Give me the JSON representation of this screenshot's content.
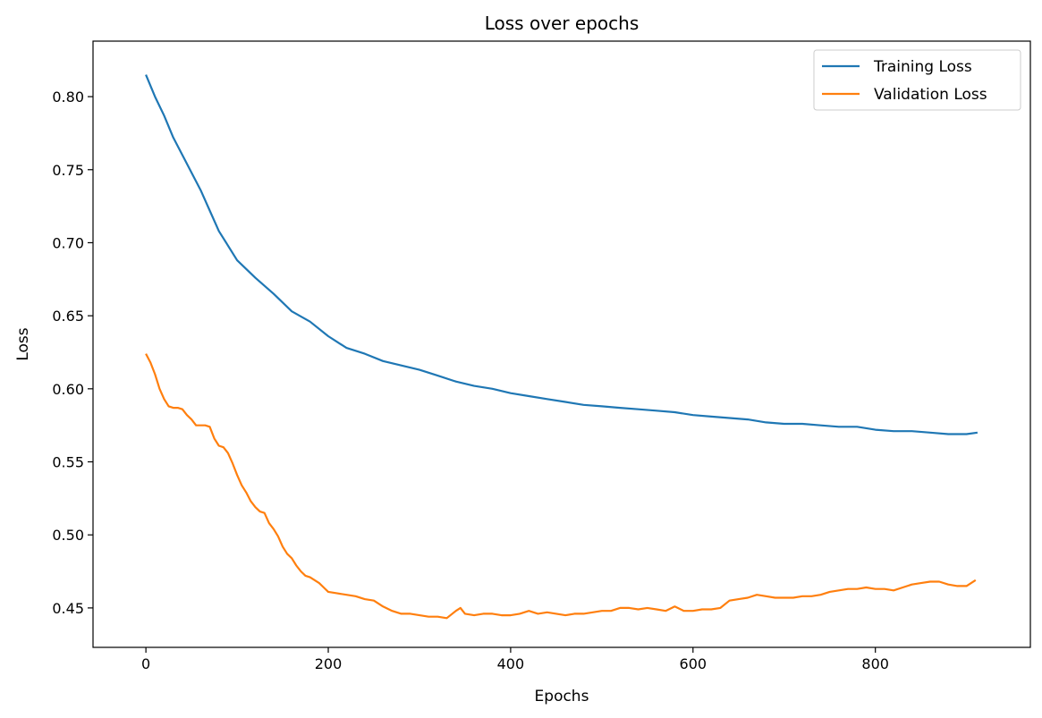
{
  "chart_data": {
    "type": "line",
    "title": "Loss over epochs",
    "xlabel": "Epochs",
    "ylabel": "Loss",
    "xlim": [
      -58,
      970
    ],
    "ylim": [
      0.423,
      0.838
    ],
    "xticks": [
      0,
      200,
      400,
      600,
      800
    ],
    "yticks": [
      0.45,
      0.5,
      0.55,
      0.6,
      0.65,
      0.7,
      0.75,
      0.8
    ],
    "ytick_labels": [
      "0.45",
      "0.50",
      "0.55",
      "0.60",
      "0.65",
      "0.70",
      "0.75",
      "0.80"
    ],
    "grid": false,
    "legend_position": "top-right",
    "series": [
      {
        "name": "Training Loss",
        "color": "#1f77b4",
        "x": [
          0,
          10,
          20,
          30,
          40,
          50,
          60,
          70,
          80,
          90,
          100,
          120,
          140,
          160,
          180,
          200,
          220,
          240,
          260,
          280,
          300,
          320,
          340,
          360,
          380,
          400,
          420,
          440,
          460,
          480,
          500,
          520,
          540,
          560,
          580,
          600,
          620,
          640,
          660,
          680,
          700,
          720,
          740,
          760,
          780,
          800,
          820,
          840,
          860,
          880,
          900,
          912
        ],
        "y": [
          0.815,
          0.8,
          0.787,
          0.772,
          0.76,
          0.748,
          0.736,
          0.722,
          0.708,
          0.698,
          0.688,
          0.676,
          0.665,
          0.653,
          0.646,
          0.636,
          0.628,
          0.624,
          0.619,
          0.616,
          0.613,
          0.609,
          0.605,
          0.602,
          0.6,
          0.597,
          0.595,
          0.593,
          0.591,
          0.589,
          0.588,
          0.587,
          0.586,
          0.585,
          0.584,
          0.582,
          0.581,
          0.58,
          0.579,
          0.577,
          0.576,
          0.576,
          0.575,
          0.574,
          0.574,
          0.572,
          0.571,
          0.571,
          0.57,
          0.569,
          0.569,
          0.57
        ]
      },
      {
        "name": "Validation Loss",
        "color": "#ff7f0e",
        "x": [
          0,
          5,
          10,
          15,
          20,
          25,
          30,
          35,
          40,
          45,
          50,
          55,
          60,
          65,
          70,
          75,
          80,
          85,
          90,
          95,
          100,
          105,
          110,
          115,
          120,
          125,
          130,
          135,
          140,
          145,
          150,
          155,
          160,
          165,
          170,
          175,
          180,
          185,
          190,
          195,
          200,
          210,
          220,
          230,
          240,
          250,
          260,
          270,
          280,
          290,
          300,
          310,
          320,
          330,
          340,
          345,
          350,
          360,
          370,
          380,
          390,
          400,
          410,
          420,
          430,
          440,
          450,
          460,
          470,
          480,
          490,
          500,
          510,
          520,
          530,
          540,
          550,
          560,
          570,
          580,
          590,
          600,
          610,
          620,
          630,
          640,
          650,
          660,
          670,
          680,
          690,
          700,
          710,
          720,
          730,
          740,
          750,
          760,
          770,
          780,
          790,
          800,
          810,
          820,
          830,
          840,
          850,
          860,
          870,
          880,
          890,
          900,
          910
        ],
        "y": [
          0.624,
          0.618,
          0.61,
          0.6,
          0.593,
          0.588,
          0.587,
          0.587,
          0.586,
          0.582,
          0.579,
          0.575,
          0.575,
          0.575,
          0.574,
          0.566,
          0.561,
          0.56,
          0.556,
          0.549,
          0.541,
          0.534,
          0.529,
          0.523,
          0.519,
          0.516,
          0.515,
          0.508,
          0.504,
          0.499,
          0.492,
          0.487,
          0.484,
          0.479,
          0.475,
          0.472,
          0.471,
          0.469,
          0.467,
          0.464,
          0.461,
          0.46,
          0.459,
          0.458,
          0.456,
          0.455,
          0.451,
          0.448,
          0.446,
          0.446,
          0.445,
          0.444,
          0.444,
          0.443,
          0.448,
          0.45,
          0.446,
          0.445,
          0.446,
          0.446,
          0.445,
          0.445,
          0.446,
          0.448,
          0.446,
          0.447,
          0.446,
          0.445,
          0.446,
          0.446,
          0.447,
          0.448,
          0.448,
          0.45,
          0.45,
          0.449,
          0.45,
          0.449,
          0.448,
          0.451,
          0.448,
          0.448,
          0.449,
          0.449,
          0.45,
          0.455,
          0.456,
          0.457,
          0.459,
          0.458,
          0.457,
          0.457,
          0.457,
          0.458,
          0.458,
          0.459,
          0.461,
          0.462,
          0.463,
          0.463,
          0.464,
          0.463,
          0.463,
          0.462,
          0.464,
          0.466,
          0.467,
          0.468,
          0.468,
          0.466,
          0.465,
          0.465,
          0.469
        ]
      }
    ]
  }
}
